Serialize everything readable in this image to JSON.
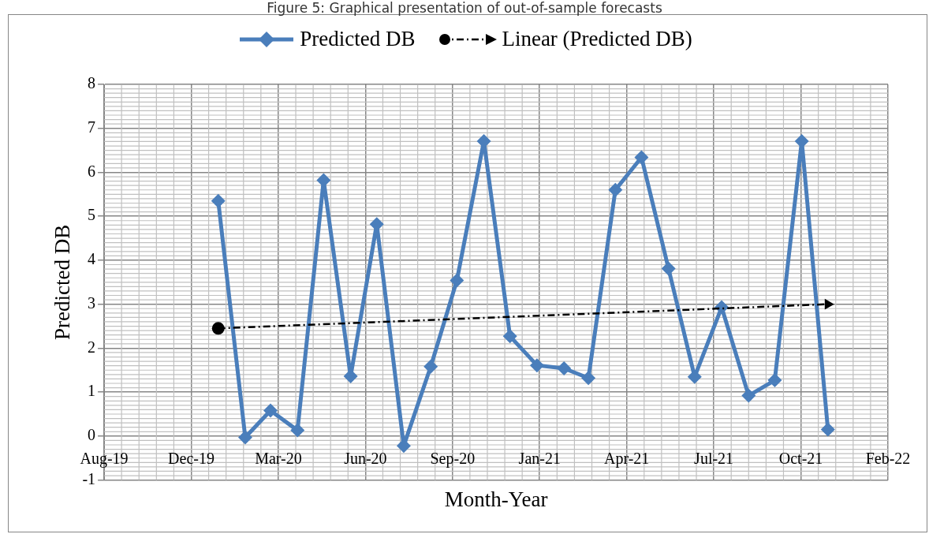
{
  "chart_data": {
    "type": "line",
    "title": "Figure 5: Graphical presentation of out-of-sample forecasts",
    "xlabel": "Month-Year",
    "ylabel": "Predicted DB",
    "x": [
      "2020-01",
      "2020-02",
      "2020-03",
      "2020-04",
      "2020-05",
      "2020-06",
      "2020-07",
      "2020-08",
      "2020-09",
      "2020-10",
      "2020-11",
      "2020-12",
      "2021-01",
      "2021-02",
      "2021-03",
      "2021-04",
      "2021-05",
      "2021-06",
      "2021-07",
      "2021-08",
      "2021-09",
      "2021-10",
      "2021-11",
      "2021-12"
    ],
    "series": [
      {
        "name": "Predicted DB",
        "color": "#4a7ebb",
        "marker": "diamond",
        "line_style": "solid",
        "values": [
          5.35,
          -0.03,
          0.58,
          0.13,
          5.82,
          1.36,
          4.82,
          -0.22,
          1.58,
          3.54,
          6.71,
          2.27,
          1.61,
          1.54,
          1.32,
          5.6,
          6.34,
          3.81,
          1.35,
          2.93,
          0.92,
          1.27,
          6.71,
          0.15
        ]
      },
      {
        "name": "Linear (Predicted DB)",
        "type": "line",
        "color": "#000000",
        "marker": "circle",
        "line_style": "dashed",
        "x": [
          "2020-01",
          "2021-12"
        ],
        "values": [
          2.45,
          3.0
        ]
      }
    ],
    "xlim": [
      "2019-08-23",
      "2022-02-08"
    ],
    "xticks": [
      {
        "value": "2019-08-23",
        "label": "Aug-19"
      },
      {
        "value": "2019-12-01",
        "label": "Dec-19"
      },
      {
        "value": "2020-03-10",
        "label": "Mar-20"
      },
      {
        "value": "2020-06-18",
        "label": "Jun-20"
      },
      {
        "value": "2020-09-26",
        "label": "Sep-20"
      },
      {
        "value": "2021-01-04",
        "label": "Jan-21"
      },
      {
        "value": "2021-04-14",
        "label": "Apr-21"
      },
      {
        "value": "2021-07-23",
        "label": "Jul-21"
      },
      {
        "value": "2021-10-31",
        "label": "Oct-21"
      },
      {
        "value": "2022-02-08",
        "label": "Feb-22"
      }
    ],
    "ylim": [
      -1,
      8
    ],
    "yticks": [
      -1,
      0,
      1,
      2,
      3,
      4,
      5,
      6,
      7,
      8
    ],
    "grid": true,
    "legend": "top"
  }
}
